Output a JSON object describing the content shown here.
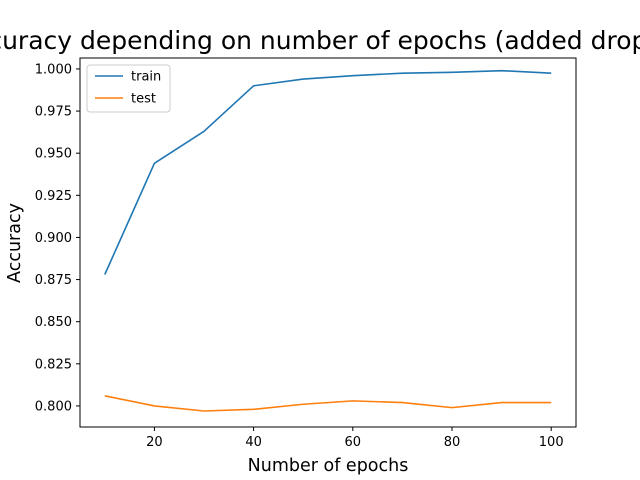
{
  "chart_data": {
    "type": "line",
    "title": "Accuracy depending on number of epochs (added dropout)",
    "xlabel": "Number of epochs",
    "ylabel": "Accuracy",
    "x": [
      10,
      20,
      30,
      40,
      50,
      60,
      70,
      80,
      90,
      100
    ],
    "xlim": [
      5,
      105
    ],
    "ylim": [
      0.7875,
      1.0065
    ],
    "xticks": [
      20,
      40,
      60,
      80,
      100
    ],
    "yticks": [
      0.8,
      0.825,
      0.85,
      0.875,
      0.9,
      0.925,
      0.95,
      0.975,
      1.0
    ],
    "ytick_labels": [
      "0.800",
      "0.825",
      "0.850",
      "0.875",
      "0.900",
      "0.925",
      "0.950",
      "0.975",
      "1.000"
    ],
    "grid": false,
    "legend_position": "top-left",
    "series": [
      {
        "name": "train",
        "color": "#1f77b4",
        "values": [
          0.878,
          0.944,
          0.963,
          0.99,
          0.994,
          0.996,
          0.9975,
          0.998,
          0.999,
          0.9975
        ]
      },
      {
        "name": "test",
        "color": "#ff7f0e",
        "values": [
          0.806,
          0.8,
          0.797,
          0.798,
          0.801,
          0.803,
          0.802,
          0.799,
          0.802,
          0.802
        ]
      }
    ]
  }
}
